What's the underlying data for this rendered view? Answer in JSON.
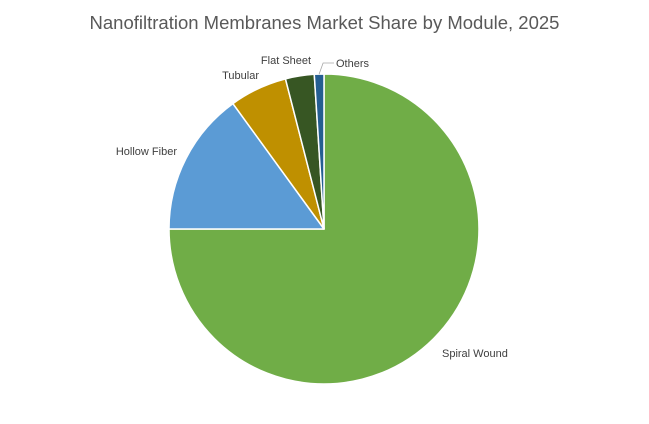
{
  "chart_data": {
    "type": "pie",
    "title": "Nanofiltration Membranes Market Share by Module, 2025",
    "slices": [
      {
        "label": "Spiral Wound",
        "value": 75.0,
        "color": "#70ad47"
      },
      {
        "label": "Hollow Fiber",
        "value": 15.0,
        "color": "#5b9bd5"
      },
      {
        "label": "Tubular",
        "value": 6.0,
        "color": "#bf9000"
      },
      {
        "label": "Flat Sheet",
        "value": 3.0,
        "color": "#375623"
      },
      {
        "label": "Others",
        "value": 1.0,
        "color": "#255e91"
      }
    ],
    "start_angle_deg": 0,
    "direction": "clockwise",
    "legend": "none",
    "data_labels": "category name, outside end"
  }
}
